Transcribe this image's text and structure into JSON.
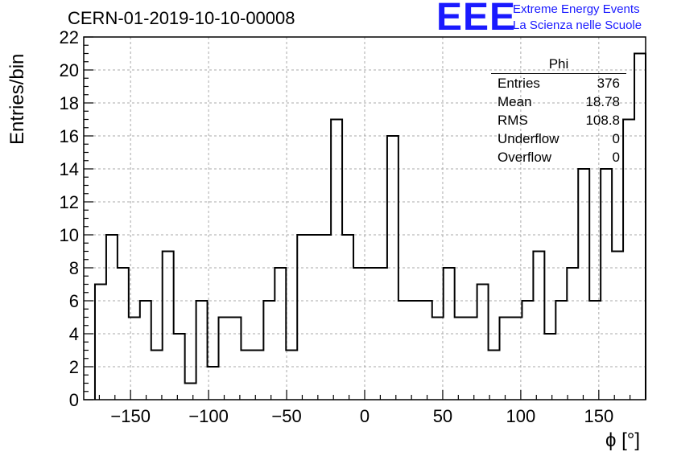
{
  "title": "CERN-01-2019-10-10-00008",
  "logo": {
    "mark": "EEE",
    "line1": "Extreme Energy Events",
    "line2": "La Scienza nelle Scuole",
    "color": "#1a1aff"
  },
  "stats": {
    "title": "Phi",
    "rows": [
      {
        "label": "Entries",
        "value": "376"
      },
      {
        "label": "Mean",
        "value": "18.78"
      },
      {
        "label": "RMS",
        "value": "108.8"
      },
      {
        "label": "Underflow",
        "value": "0"
      },
      {
        "label": "Overflow",
        "value": "0"
      }
    ]
  },
  "chart_data": {
    "type": "bar",
    "style": "step-histogram",
    "xlabel": "ϕ [°]",
    "ylabel": "Entries/bin",
    "xlim": [
      -180,
      180
    ],
    "ylim": [
      0,
      22
    ],
    "bin_width": 7.2,
    "bin_edges_start": -172.8,
    "values": [
      7,
      10,
      8,
      5,
      6,
      3,
      9,
      4,
      1,
      6,
      2,
      5,
      5,
      3,
      3,
      6,
      8,
      3,
      10,
      10,
      10,
      17,
      10,
      8,
      8,
      8,
      16,
      6,
      6,
      6,
      5,
      8,
      5,
      5,
      7,
      3,
      5,
      5,
      6,
      9,
      4,
      6,
      8,
      14,
      6,
      14,
      9,
      17,
      21
    ],
    "xticks": [
      -150,
      -100,
      -50,
      0,
      50,
      100,
      150
    ],
    "yticks": [
      0,
      2,
      4,
      6,
      8,
      10,
      12,
      14,
      16,
      18,
      20,
      22
    ],
    "grid": true,
    "stats_box": "top-right"
  }
}
